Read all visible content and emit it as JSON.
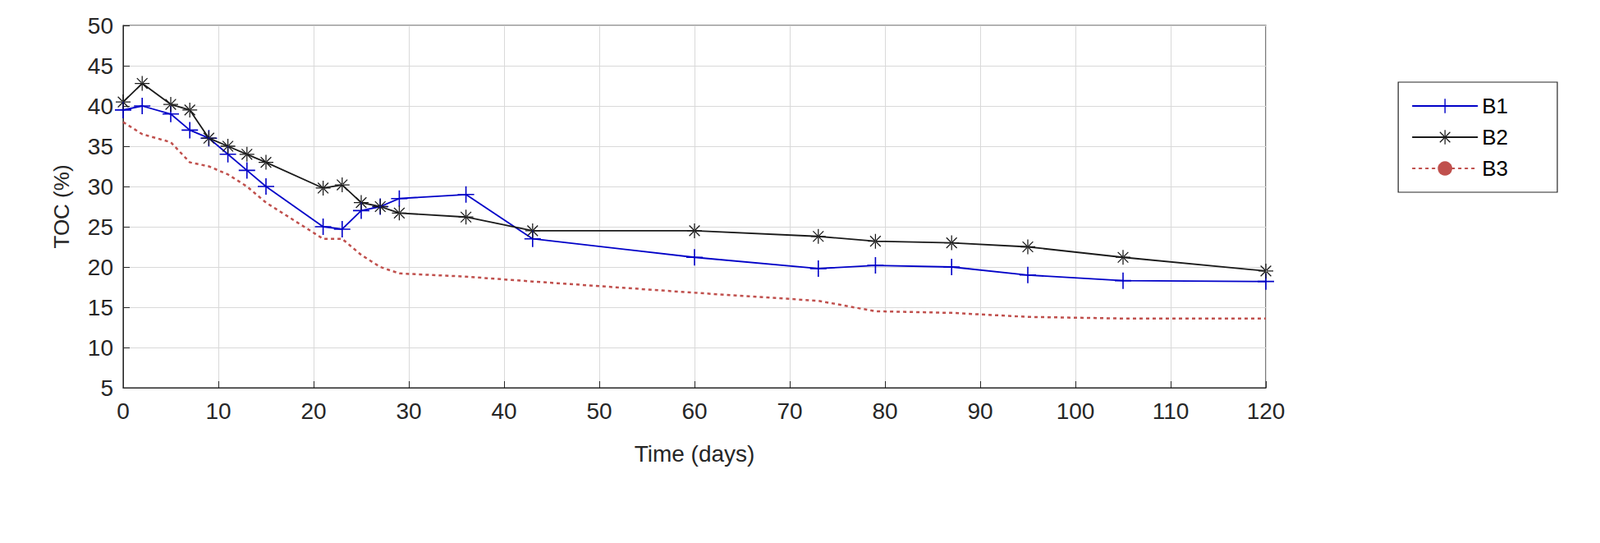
{
  "chart_data": {
    "type": "line",
    "x_label": "Time (days)",
    "y_label": "TOC (%)",
    "x": [
      0,
      2,
      5,
      7,
      9,
      11,
      13,
      15,
      21,
      23,
      25,
      27,
      29,
      36,
      43,
      60,
      73,
      79,
      87,
      95,
      105,
      120
    ],
    "series": [
      {
        "name": "B1",
        "color": "#0000c8",
        "marker": "plus",
        "line_style": "solid",
        "values": [
          39.5,
          40.0,
          39.0,
          37.0,
          36.0,
          34.0,
          32.0,
          30.0,
          25.0,
          24.7,
          27.0,
          27.5,
          28.5,
          29.0,
          23.5,
          21.2,
          19.8,
          20.2,
          20.0,
          19.0,
          18.3,
          18.2
        ]
      },
      {
        "name": "B2",
        "color": "#1a1a1a",
        "marker": "asterisk",
        "line_style": "solid",
        "values": [
          40.5,
          42.8,
          40.2,
          39.5,
          36.0,
          35.0,
          34.0,
          33.0,
          29.8,
          30.2,
          28.0,
          27.5,
          26.7,
          26.2,
          24.5,
          24.5,
          23.8,
          23.2,
          23.0,
          22.5,
          21.2,
          19.5
        ]
      },
      {
        "name": "B3",
        "color": "#c0504d",
        "marker": "none",
        "line_style": "dotted",
        "values": [
          38.0,
          36.5,
          35.5,
          33.0,
          32.5,
          31.5,
          30.0,
          28.0,
          23.5,
          23.5,
          21.5,
          20.0,
          19.2,
          18.8,
          18.2,
          16.8,
          15.8,
          14.5,
          14.3,
          13.8,
          13.6,
          13.6
        ]
      }
    ],
    "xlim": [
      0,
      120
    ],
    "xticks": [
      0,
      10,
      20,
      30,
      40,
      50,
      60,
      70,
      80,
      90,
      100,
      110,
      120
    ],
    "ylim": [
      5,
      50
    ],
    "yticks": [
      5,
      10,
      15,
      20,
      25,
      30,
      35,
      40,
      45,
      50
    ],
    "grid": true,
    "legend": "right"
  }
}
